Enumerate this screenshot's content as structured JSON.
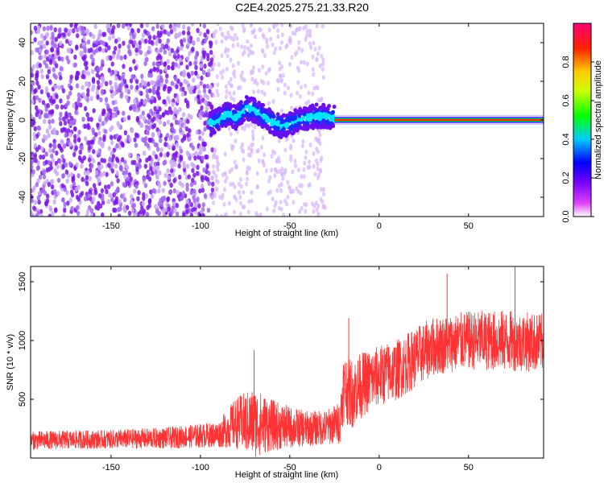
{
  "figure_title": "C2E4.2025.275.21.33.R20",
  "chart_data": [
    {
      "type": "heatmap",
      "xlabel": "Height of straight line (km)",
      "ylabel": "Frequency (Hz)",
      "xlim": [
        -195,
        92
      ],
      "ylim": [
        -50,
        50
      ],
      "x_ticks": [
        -150,
        -100,
        -50,
        0,
        50
      ],
      "y_ticks": [
        -40,
        -20,
        0,
        20,
        40
      ],
      "colorbar": {
        "label": "Normalized spectral amplitude",
        "range": [
          0,
          1
        ],
        "ticks": [
          "0.0",
          "0.2",
          "0.4",
          "0.6",
          "0.8"
        ],
        "colors": [
          "#ffffff",
          "#8a00ff",
          "#0000ff",
          "#00ffff",
          "#00ff00",
          "#ffff00",
          "#ff0000",
          "#ff0066"
        ]
      },
      "regions": [
        {
          "x_range": [
            -195,
            -93
          ],
          "frequency_spread_hz": [
            -50,
            50
          ],
          "amplitude": 0.05,
          "description_color": "#8a2be2"
        },
        {
          "x_range": [
            -93,
            -30
          ],
          "frequency_spread_hz": [
            -50,
            50
          ],
          "amplitude": 0.02,
          "description_color": "#d8b4fe"
        },
        {
          "x_range": [
            -95,
            -25
          ],
          "center_frequency_hz": [
            0,
            8
          ],
          "amplitude": 0.35
        },
        {
          "x_range": [
            -25,
            92
          ],
          "center_frequency_hz": 0,
          "amplitude": 0.9
        }
      ],
      "ridge": {
        "x": [
          -95,
          -90,
          -85,
          -80,
          -75,
          -70,
          -65,
          -60,
          -55,
          -50,
          -45,
          -40,
          -35,
          -30,
          -25,
          -20,
          -10,
          0,
          10,
          20,
          40,
          60,
          80,
          92
        ],
        "y": [
          -2,
          0,
          3,
          1,
          6,
          5,
          2,
          -1,
          -3,
          -2,
          0,
          1,
          2,
          2,
          1,
          1,
          0,
          0,
          -1,
          0,
          0,
          0,
          0,
          0
        ]
      }
    },
    {
      "type": "line",
      "xlabel": "Height of straight line (km)",
      "ylabel": "SNR (10 * v/v)",
      "xlim": [
        -195,
        92
      ],
      "ylim": [
        0,
        1630
      ],
      "x_ticks": [
        -150,
        -100,
        -50,
        0,
        50
      ],
      "y_ticks": [
        500,
        1000,
        1500
      ],
      "color": "#ff3333",
      "envelope": {
        "x": [
          -195,
          -150,
          -120,
          -90,
          -80,
          -70,
          -60,
          -50,
          -40,
          -30,
          -22,
          -20,
          -15,
          -10,
          0,
          10,
          20,
          30,
          50,
          70,
          92
        ],
        "y_mean": [
          150,
          160,
          170,
          200,
          300,
          300,
          280,
          260,
          250,
          260,
          300,
          600,
          550,
          620,
          700,
          750,
          850,
          950,
          1000,
          1000,
          980
        ],
        "y_spread": [
          80,
          80,
          90,
          110,
          220,
          300,
          220,
          180,
          150,
          150,
          180,
          300,
          300,
          280,
          260,
          260,
          260,
          250,
          250,
          260,
          250
        ]
      },
      "peaks": [
        {
          "x": -70,
          "y": 920
        },
        {
          "x": -17,
          "y": 1190
        },
        {
          "x": 38,
          "y": 1570
        },
        {
          "x": 76,
          "y": 1625
        }
      ]
    }
  ]
}
